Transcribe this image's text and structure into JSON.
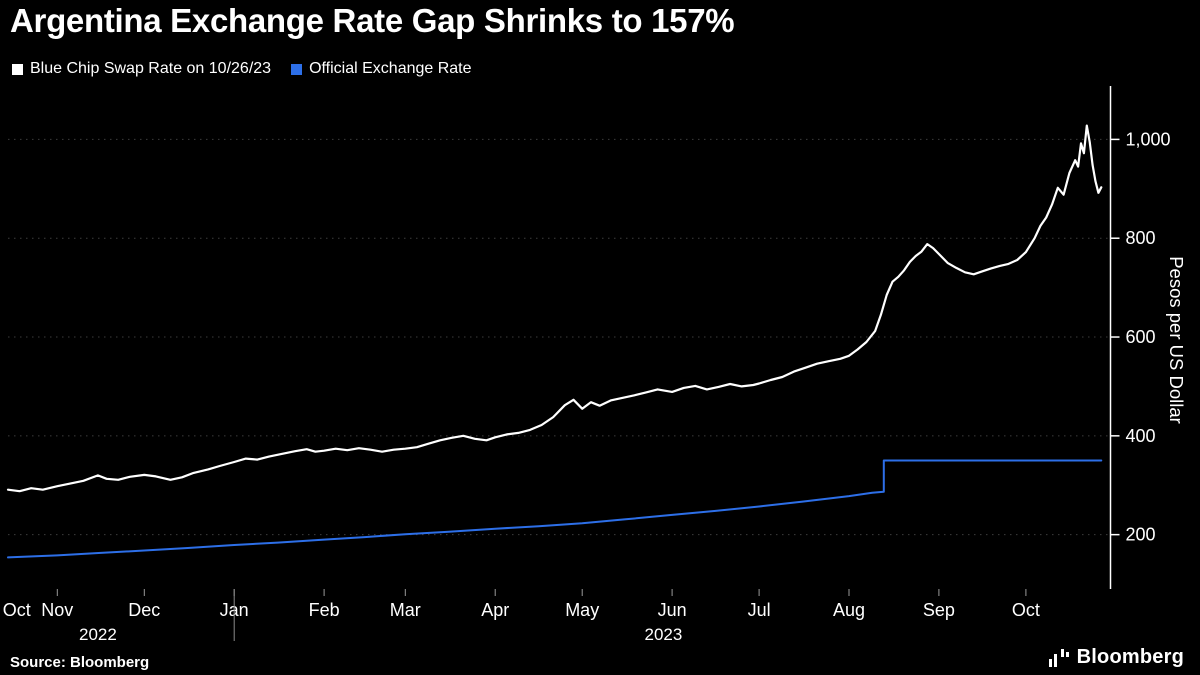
{
  "title": "Argentina Exchange Rate Gap Shrinks to 157%",
  "legend": [
    {
      "label": "Blue Chip Swap Rate on 10/26/23",
      "color": "#FFFFFF"
    },
    {
      "label": "Official Exchange Rate",
      "color": "#2D6FE8"
    }
  ],
  "source": "Source: Bloomberg",
  "brand": "Bloomberg",
  "colors": {
    "background": "#000000",
    "grid": "#3D3D3D",
    "axis": "#FFFFFF",
    "text": "#FFFFFF",
    "year_divider": "#8A8A8A",
    "blue_chip": "#FFFFFF",
    "official": "#2D6FE8"
  },
  "chart_data": {
    "type": "line",
    "title": "Argentina Exchange Rate Gap Shrinks to 157%",
    "xlabel": "",
    "ylabel": "Pesos per US Dollar",
    "ylim": [
      90,
      1100
    ],
    "y_ticks": [
      200,
      400,
      600,
      800,
      1000
    ],
    "x_unit": "days since 2022-10-15",
    "x_range": [
      0,
      380
    ],
    "grid": "horizontal-dotted",
    "legend_position": "top-left",
    "months": [
      {
        "label": "Oct",
        "day": 3
      },
      {
        "label": "Nov",
        "day": 17
      },
      {
        "label": "Dec",
        "day": 47
      },
      {
        "label": "Jan",
        "day": 78
      },
      {
        "label": "Feb",
        "day": 109
      },
      {
        "label": "Mar",
        "day": 137
      },
      {
        "label": "Apr",
        "day": 168
      },
      {
        "label": "May",
        "day": 198
      },
      {
        "label": "Jun",
        "day": 229
      },
      {
        "label": "Jul",
        "day": 259
      },
      {
        "label": "Aug",
        "day": 290
      },
      {
        "label": "Sep",
        "day": 321
      },
      {
        "label": "Oct",
        "day": 351
      }
    ],
    "years": [
      {
        "label": "2022",
        "day": 31
      },
      {
        "label": "2023",
        "day": 226
      }
    ],
    "year_divider_day": 78,
    "series": [
      {
        "name": "Official Exchange Rate",
        "color": "#2D6FE8",
        "width": 2,
        "points": [
          [
            0,
            154
          ],
          [
            17,
            158
          ],
          [
            32,
            163
          ],
          [
            47,
            168
          ],
          [
            62,
            173
          ],
          [
            78,
            179
          ],
          [
            93,
            184
          ],
          [
            109,
            190
          ],
          [
            123,
            195
          ],
          [
            137,
            201
          ],
          [
            152,
            206
          ],
          [
            168,
            212
          ],
          [
            183,
            217
          ],
          [
            198,
            223
          ],
          [
            213,
            231
          ],
          [
            229,
            240
          ],
          [
            244,
            248
          ],
          [
            259,
            257
          ],
          [
            274,
            267
          ],
          [
            290,
            278
          ],
          [
            298,
            285
          ],
          [
            302,
            287
          ],
          [
            302,
            350
          ],
          [
            377,
            350
          ]
        ]
      },
      {
        "name": "Blue Chip Swap Rate on 10/26/23",
        "color": "#FFFFFF",
        "width": 2.2,
        "points": [
          [
            0,
            291
          ],
          [
            4,
            288
          ],
          [
            8,
            294
          ],
          [
            12,
            291
          ],
          [
            17,
            298
          ],
          [
            21,
            303
          ],
          [
            26,
            309
          ],
          [
            31,
            320
          ],
          [
            34,
            313
          ],
          [
            38,
            311
          ],
          [
            42,
            317
          ],
          [
            47,
            321
          ],
          [
            51,
            318
          ],
          [
            56,
            311
          ],
          [
            60,
            316
          ],
          [
            64,
            325
          ],
          [
            69,
            332
          ],
          [
            73,
            339
          ],
          [
            78,
            347
          ],
          [
            82,
            354
          ],
          [
            86,
            352
          ],
          [
            90,
            358
          ],
          [
            95,
            364
          ],
          [
            99,
            369
          ],
          [
            103,
            373
          ],
          [
            106,
            368
          ],
          [
            109,
            370
          ],
          [
            113,
            374
          ],
          [
            117,
            371
          ],
          [
            121,
            375
          ],
          [
            125,
            372
          ],
          [
            129,
            368
          ],
          [
            133,
            372
          ],
          [
            137,
            374
          ],
          [
            141,
            377
          ],
          [
            145,
            384
          ],
          [
            149,
            391
          ],
          [
            153,
            396
          ],
          [
            157,
            400
          ],
          [
            161,
            394
          ],
          [
            165,
            391
          ],
          [
            168,
            397
          ],
          [
            172,
            403
          ],
          [
            176,
            406
          ],
          [
            180,
            412
          ],
          [
            184,
            422
          ],
          [
            188,
            438
          ],
          [
            192,
            462
          ],
          [
            195,
            473
          ],
          [
            198,
            455
          ],
          [
            201,
            468
          ],
          [
            204,
            461
          ],
          [
            208,
            472
          ],
          [
            212,
            477
          ],
          [
            216,
            482
          ],
          [
            220,
            488
          ],
          [
            224,
            494
          ],
          [
            229,
            489
          ],
          [
            233,
            497
          ],
          [
            237,
            501
          ],
          [
            241,
            494
          ],
          [
            245,
            499
          ],
          [
            249,
            505
          ],
          [
            253,
            500
          ],
          [
            257,
            503
          ],
          [
            259,
            506
          ],
          [
            263,
            513
          ],
          [
            267,
            519
          ],
          [
            271,
            530
          ],
          [
            275,
            538
          ],
          [
            279,
            546
          ],
          [
            283,
            551
          ],
          [
            287,
            556
          ],
          [
            290,
            562
          ],
          [
            293,
            575
          ],
          [
            296,
            590
          ],
          [
            299,
            612
          ],
          [
            301,
            645
          ],
          [
            303,
            685
          ],
          [
            305,
            712
          ],
          [
            307,
            722
          ],
          [
            309,
            735
          ],
          [
            311,
            752
          ],
          [
            313,
            764
          ],
          [
            315,
            773
          ],
          [
            317,
            788
          ],
          [
            319,
            780
          ],
          [
            321,
            768
          ],
          [
            324,
            750
          ],
          [
            327,
            740
          ],
          [
            330,
            731
          ],
          [
            333,
            727
          ],
          [
            336,
            733
          ],
          [
            339,
            739
          ],
          [
            342,
            744
          ],
          [
            345,
            748
          ],
          [
            348,
            756
          ],
          [
            351,
            772
          ],
          [
            354,
            800
          ],
          [
            356,
            825
          ],
          [
            358,
            842
          ],
          [
            360,
            868
          ],
          [
            362,
            902
          ],
          [
            364,
            888
          ],
          [
            366,
            932
          ],
          [
            368,
            958
          ],
          [
            369,
            945
          ],
          [
            370,
            992
          ],
          [
            371,
            972
          ],
          [
            372,
            1028
          ],
          [
            373,
            995
          ],
          [
            374,
            948
          ],
          [
            375,
            915
          ],
          [
            376,
            892
          ],
          [
            377,
            903
          ]
        ]
      }
    ]
  }
}
